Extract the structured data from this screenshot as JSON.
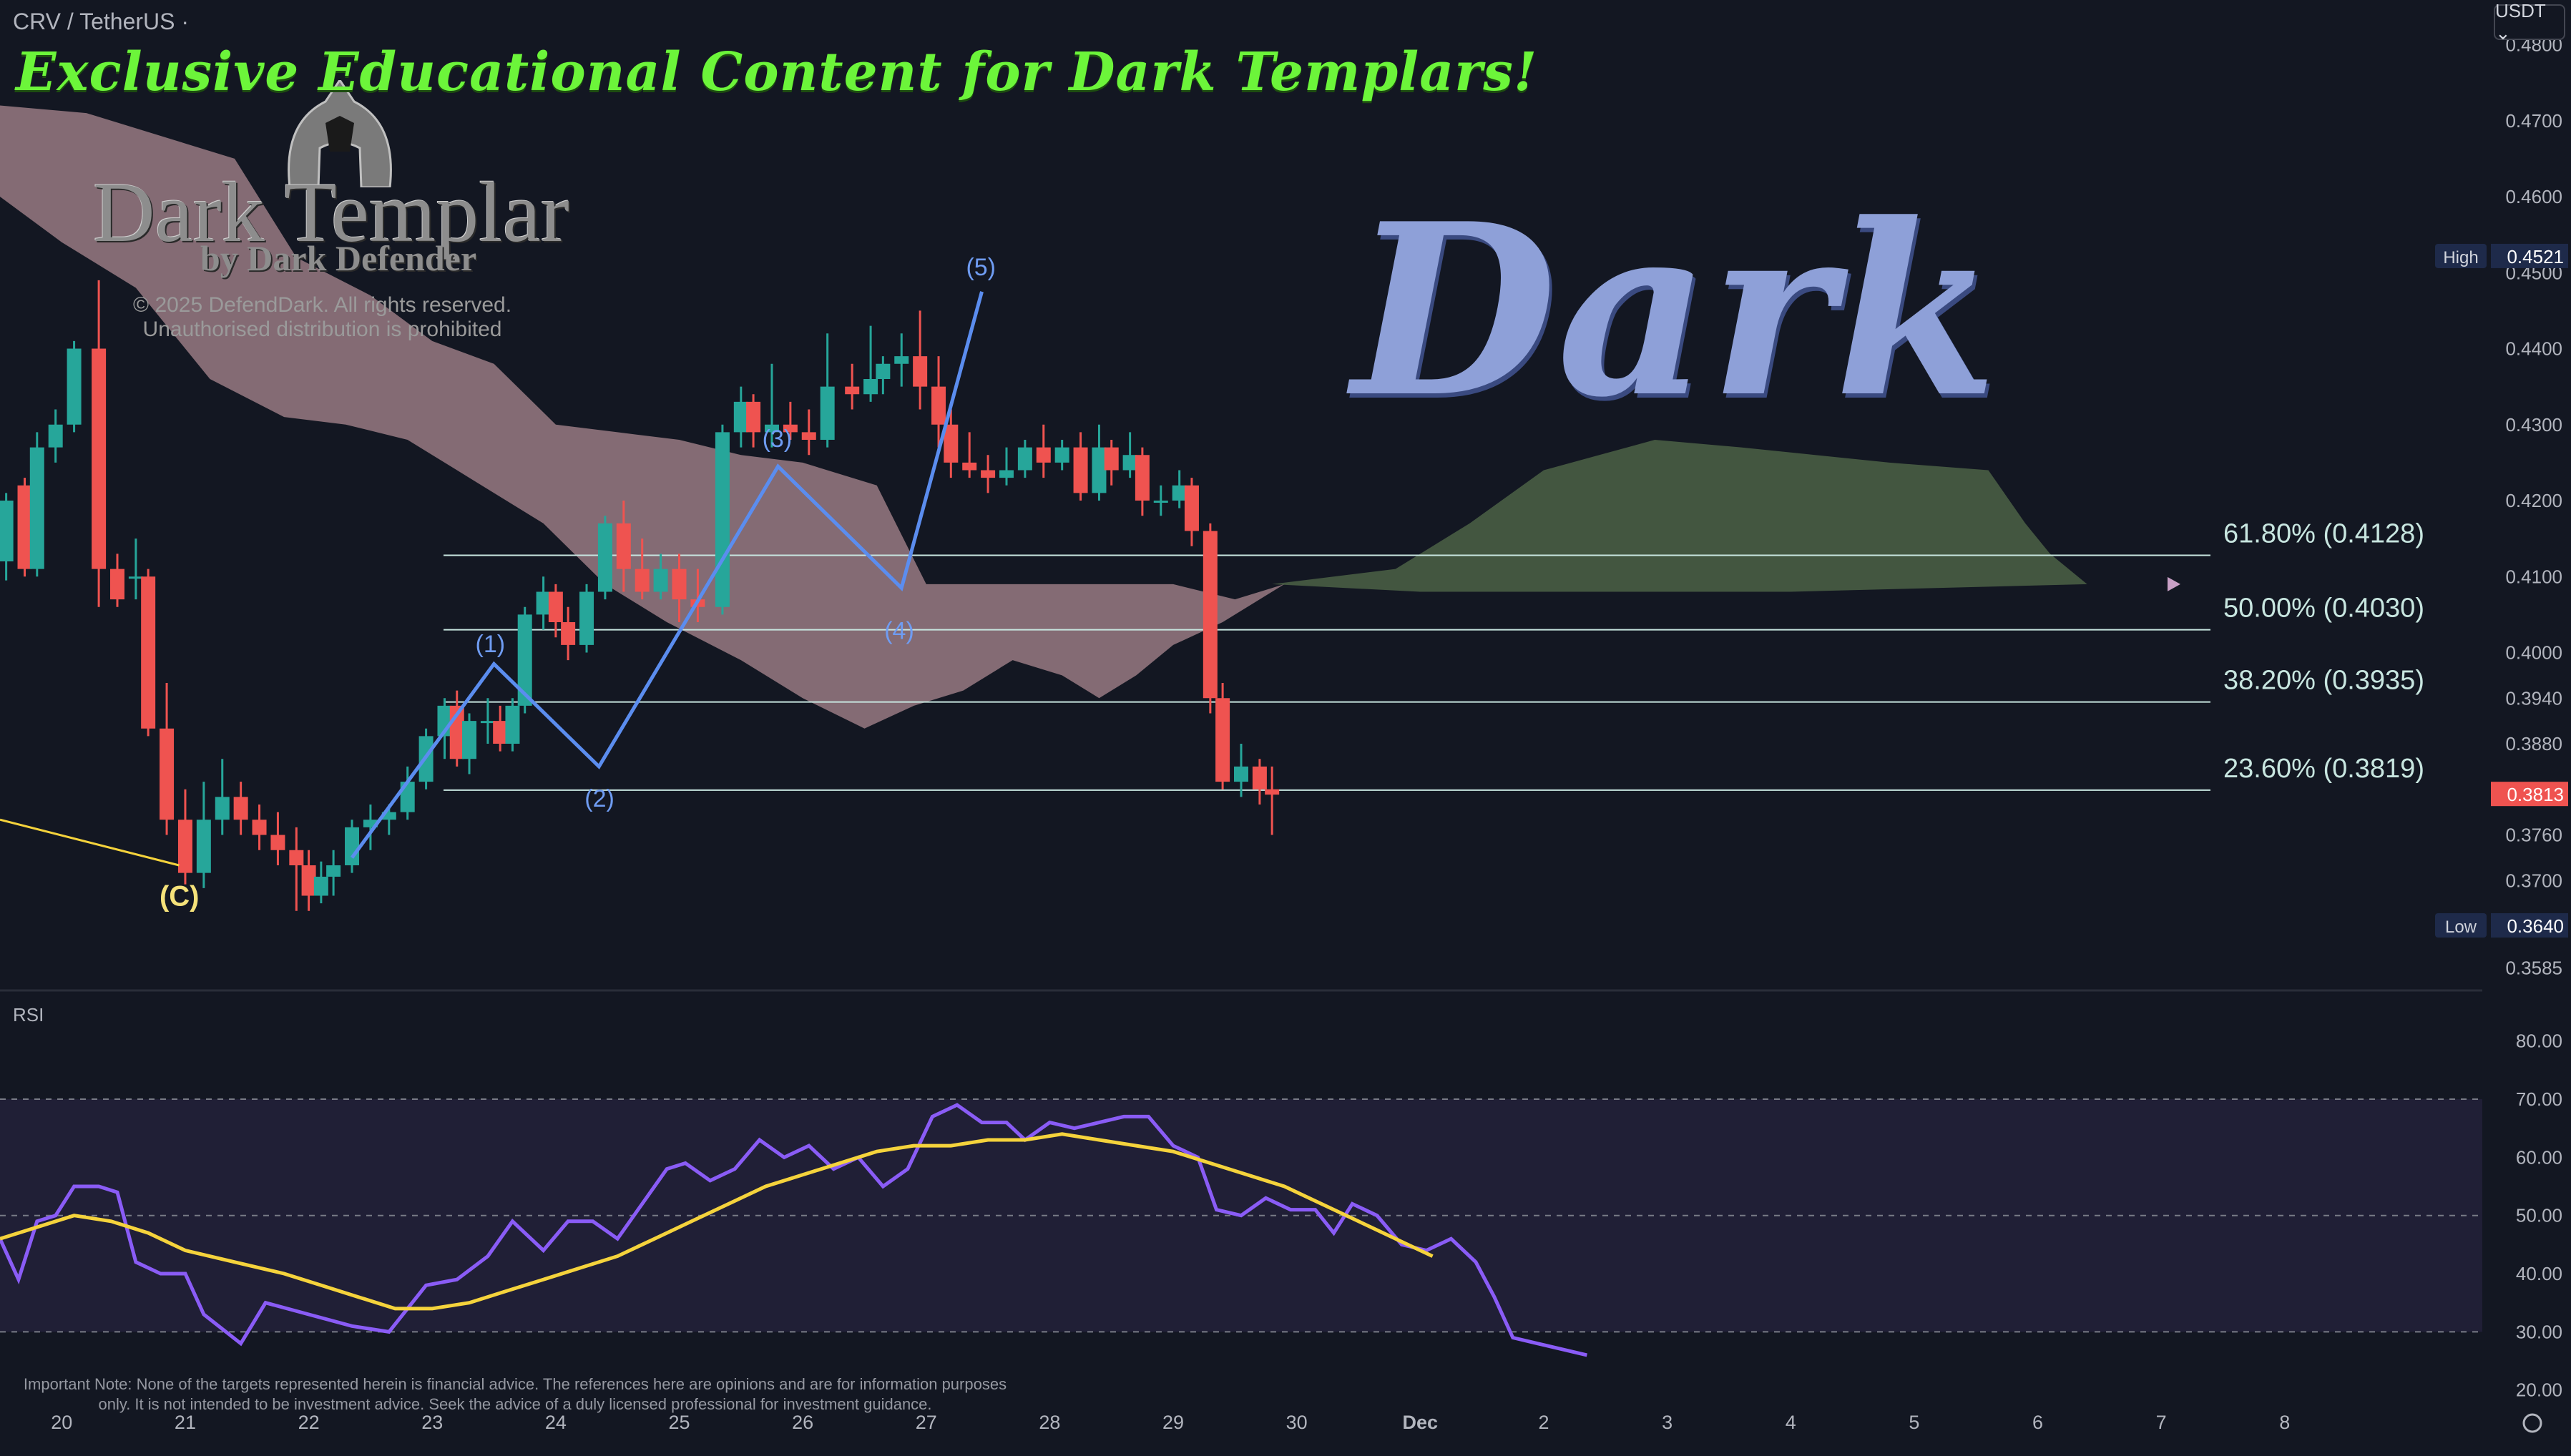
{
  "header": {
    "symbol": "CRV / TetherUS ·",
    "currency": "USDT ⌄"
  },
  "branding": {
    "promo": "Exclusive Educational Content for Dark Templars!",
    "logo": "Dark Templar",
    "logo_sub": "by Dark Defender",
    "copyright": "© 2025 DefendDark. All rights reserved.",
    "distribution": "Unauthorised distribution is prohibited",
    "watermark": "Dark"
  },
  "colors": {
    "bg": "#131722",
    "up": "#26a69a",
    "down": "#ef5350",
    "wave": "#5b8def",
    "rsi": "#8a5cf6",
    "rsi_ma": "#f5d33c",
    "fib": "#c8e6e0",
    "cloud_bear": "#c9a0a6",
    "cloud_bull": "#6b8a5a"
  },
  "chart_data": {
    "type": "candlestick",
    "price_axis": {
      "ticks": [
        "0.4800",
        "0.4700",
        "0.4600",
        "0.4500",
        "0.4400",
        "0.4300",
        "0.4200",
        "0.4100",
        "0.4000",
        "0.3940",
        "0.3880",
        "0.3760",
        "0.3700",
        "0.3585"
      ],
      "ylim": [
        0.356,
        0.484
      ],
      "high": {
        "label": "High",
        "value": "0.4521"
      },
      "last": {
        "value": "0.3813"
      },
      "low": {
        "label": "Low",
        "value": "0.3640"
      }
    },
    "x_axis": {
      "labels": [
        "20",
        "21",
        "22",
        "23",
        "24",
        "25",
        "26",
        "27",
        "28",
        "29",
        "30",
        "Dec",
        "2",
        "3",
        "4",
        "5",
        "6",
        "7",
        "8"
      ],
      "xlim": [
        19.5,
        39.6
      ]
    },
    "candles": [
      [
        19.55,
        0.412,
        0.42,
        0.4095,
        0.421
      ],
      [
        19.7,
        0.422,
        0.411,
        0.41,
        0.423
      ],
      [
        19.8,
        0.411,
        0.427,
        0.41,
        0.429
      ],
      [
        19.95,
        0.427,
        0.43,
        0.425,
        0.432
      ],
      [
        20.1,
        0.43,
        0.44,
        0.429,
        0.441
      ],
      [
        20.3,
        0.44,
        0.411,
        0.406,
        0.449
      ],
      [
        20.45,
        0.411,
        0.407,
        0.406,
        0.413
      ],
      [
        20.6,
        0.41,
        0.41,
        0.407,
        0.415
      ],
      [
        20.7,
        0.41,
        0.39,
        0.389,
        0.411
      ],
      [
        20.85,
        0.39,
        0.378,
        0.376,
        0.396
      ],
      [
        21.0,
        0.378,
        0.371,
        0.3695,
        0.382
      ],
      [
        21.15,
        0.371,
        0.378,
        0.369,
        0.383
      ],
      [
        21.3,
        0.378,
        0.381,
        0.376,
        0.386
      ],
      [
        21.45,
        0.381,
        0.378,
        0.376,
        0.383
      ],
      [
        21.6,
        0.378,
        0.376,
        0.374,
        0.38
      ],
      [
        21.75,
        0.376,
        0.374,
        0.372,
        0.379
      ],
      [
        21.9,
        0.374,
        0.372,
        0.366,
        0.377
      ],
      [
        22.0,
        0.372,
        0.368,
        0.366,
        0.374
      ],
      [
        22.1,
        0.368,
        0.3705,
        0.367,
        0.3725
      ],
      [
        22.2,
        0.3705,
        0.372,
        0.368,
        0.374
      ],
      [
        22.35,
        0.372,
        0.377,
        0.371,
        0.378
      ],
      [
        22.5,
        0.377,
        0.378,
        0.374,
        0.38
      ],
      [
        22.65,
        0.378,
        0.379,
        0.376,
        0.38
      ],
      [
        22.8,
        0.379,
        0.383,
        0.378,
        0.385
      ],
      [
        22.95,
        0.383,
        0.389,
        0.382,
        0.39
      ],
      [
        23.1,
        0.389,
        0.393,
        0.386,
        0.394
      ],
      [
        23.2,
        0.393,
        0.386,
        0.385,
        0.395
      ],
      [
        23.3,
        0.386,
        0.391,
        0.384,
        0.392
      ],
      [
        23.45,
        0.391,
        0.391,
        0.388,
        0.394
      ],
      [
        23.55,
        0.391,
        0.388,
        0.387,
        0.393
      ],
      [
        23.65,
        0.388,
        0.393,
        0.387,
        0.394
      ],
      [
        23.75,
        0.393,
        0.405,
        0.392,
        0.406
      ],
      [
        23.9,
        0.405,
        0.408,
        0.403,
        0.41
      ],
      [
        24.0,
        0.408,
        0.404,
        0.402,
        0.409
      ],
      [
        24.1,
        0.404,
        0.401,
        0.399,
        0.406
      ],
      [
        24.25,
        0.401,
        0.408,
        0.4,
        0.409
      ],
      [
        24.4,
        0.408,
        0.417,
        0.407,
        0.418
      ],
      [
        24.55,
        0.417,
        0.411,
        0.408,
        0.42
      ],
      [
        24.7,
        0.411,
        0.408,
        0.407,
        0.415
      ],
      [
        24.85,
        0.408,
        0.411,
        0.407,
        0.413
      ],
      [
        25.0,
        0.411,
        0.407,
        0.404,
        0.413
      ],
      [
        25.15,
        0.407,
        0.406,
        0.404,
        0.411
      ],
      [
        25.35,
        0.406,
        0.429,
        0.405,
        0.43
      ],
      [
        25.5,
        0.429,
        0.433,
        0.427,
        0.435
      ],
      [
        25.6,
        0.433,
        0.429,
        0.427,
        0.434
      ],
      [
        25.75,
        0.429,
        0.43,
        0.427,
        0.438
      ],
      [
        25.9,
        0.43,
        0.429,
        0.428,
        0.433
      ],
      [
        26.05,
        0.429,
        0.428,
        0.426,
        0.432
      ],
      [
        26.2,
        0.428,
        0.435,
        0.427,
        0.442
      ],
      [
        26.4,
        0.435,
        0.434,
        0.432,
        0.438
      ],
      [
        26.55,
        0.434,
        0.436,
        0.433,
        0.443
      ],
      [
        26.65,
        0.436,
        0.438,
        0.434,
        0.439
      ],
      [
        26.8,
        0.438,
        0.439,
        0.435,
        0.442
      ],
      [
        26.95,
        0.439,
        0.435,
        0.432,
        0.445
      ],
      [
        27.1,
        0.435,
        0.43,
        0.427,
        0.439
      ],
      [
        27.2,
        0.43,
        0.425,
        0.423,
        0.432
      ],
      [
        27.35,
        0.425,
        0.424,
        0.423,
        0.429
      ],
      [
        27.5,
        0.424,
        0.423,
        0.421,
        0.426
      ],
      [
        27.65,
        0.423,
        0.424,
        0.422,
        0.427
      ],
      [
        27.8,
        0.424,
        0.427,
        0.423,
        0.428
      ],
      [
        27.95,
        0.427,
        0.425,
        0.423,
        0.43
      ],
      [
        28.1,
        0.425,
        0.427,
        0.424,
        0.428
      ],
      [
        28.25,
        0.427,
        0.421,
        0.42,
        0.429
      ],
      [
        28.4,
        0.421,
        0.427,
        0.42,
        0.43
      ],
      [
        28.5,
        0.427,
        0.424,
        0.422,
        0.428
      ],
      [
        28.65,
        0.424,
        0.426,
        0.423,
        0.429
      ],
      [
        28.75,
        0.426,
        0.42,
        0.418,
        0.427
      ],
      [
        28.9,
        0.42,
        0.42,
        0.418,
        0.422
      ],
      [
        29.05,
        0.42,
        0.422,
        0.419,
        0.424
      ],
      [
        29.15,
        0.422,
        0.416,
        0.414,
        0.423
      ],
      [
        29.3,
        0.416,
        0.394,
        0.392,
        0.417
      ],
      [
        29.4,
        0.394,
        0.383,
        0.382,
        0.396
      ],
      [
        29.55,
        0.383,
        0.385,
        0.381,
        0.388
      ],
      [
        29.7,
        0.385,
        0.382,
        0.38,
        0.386
      ],
      [
        29.8,
        0.382,
        0.3813,
        0.376,
        0.385
      ]
    ],
    "waves": [
      {
        "label": "(1)",
        "x": 23.5,
        "y": 0.398
      },
      {
        "label": "(2)",
        "x": 24.35,
        "y": 0.385
      },
      {
        "label": "(3)",
        "x": 25.8,
        "y": 0.425
      },
      {
        "label": "(4)",
        "x": 26.8,
        "y": 0.408
      },
      {
        "label": "(5)",
        "x": 27.45,
        "y": 0.447
      }
    ],
    "wave_path": [
      [
        22.35,
        0.373
      ],
      [
        23.5,
        0.3985
      ],
      [
        24.35,
        0.385
      ],
      [
        25.8,
        0.4245
      ],
      [
        26.8,
        0.4085
      ],
      [
        27.45,
        0.4475
      ]
    ],
    "wave_c": {
      "label": "(C)",
      "x": 21.0,
      "y": 0.368,
      "line": [
        [
          19.5,
          0.378
        ],
        [
          20.95,
          0.372
        ]
      ]
    },
    "fibs": [
      {
        "label": "61.80% (0.4128)",
        "value": 0.4128
      },
      {
        "label": "50.00% (0.4030)",
        "value": 0.403
      },
      {
        "label": "38.20% (0.3935)",
        "value": 0.3935
      },
      {
        "label": "23.60% (0.3819)",
        "value": 0.3819
      }
    ],
    "rsi": {
      "label": "RSI",
      "ticks": [
        "80.00",
        "70.00",
        "60.00",
        "50.00",
        "40.00",
        "30.00",
        "20.00"
      ],
      "ylim": [
        18,
        85
      ],
      "upper": 70,
      "mid": 50,
      "lower": 30,
      "rsi": [
        [
          19.5,
          46
        ],
        [
          19.65,
          39
        ],
        [
          19.8,
          49
        ],
        [
          19.95,
          50
        ],
        [
          20.1,
          55
        ],
        [
          20.3,
          55
        ],
        [
          20.45,
          54
        ],
        [
          20.6,
          42
        ],
        [
          20.8,
          40
        ],
        [
          21.0,
          40
        ],
        [
          21.15,
          33
        ],
        [
          21.45,
          28
        ],
        [
          21.65,
          35
        ],
        [
          22.0,
          33
        ],
        [
          22.35,
          31
        ],
        [
          22.65,
          30
        ],
        [
          22.95,
          38
        ],
        [
          23.2,
          39
        ],
        [
          23.45,
          43
        ],
        [
          23.65,
          49
        ],
        [
          23.9,
          44
        ],
        [
          24.1,
          49
        ],
        [
          24.3,
          49
        ],
        [
          24.5,
          46
        ],
        [
          24.7,
          52
        ],
        [
          24.9,
          58
        ],
        [
          25.05,
          59
        ],
        [
          25.25,
          56
        ],
        [
          25.45,
          58
        ],
        [
          25.65,
          63
        ],
        [
          25.85,
          60
        ],
        [
          26.05,
          62
        ],
        [
          26.25,
          58
        ],
        [
          26.45,
          60
        ],
        [
          26.65,
          55
        ],
        [
          26.85,
          58
        ],
        [
          27.05,
          67
        ],
        [
          27.25,
          69
        ],
        [
          27.45,
          66
        ],
        [
          27.65,
          66
        ],
        [
          27.8,
          63
        ],
        [
          28.0,
          66
        ],
        [
          28.2,
          65
        ],
        [
          28.4,
          66
        ],
        [
          28.6,
          67
        ],
        [
          28.8,
          67
        ],
        [
          29.0,
          62
        ],
        [
          29.2,
          60
        ],
        [
          29.35,
          51
        ],
        [
          29.55,
          50
        ],
        [
          29.75,
          53
        ],
        [
          29.95,
          51
        ],
        [
          30.15,
          51
        ],
        [
          30.3,
          47
        ],
        [
          30.45,
          52
        ],
        [
          30.65,
          50
        ],
        [
          30.85,
          45
        ],
        [
          31.05,
          44
        ],
        [
          31.25,
          46
        ],
        [
          31.45,
          42
        ],
        [
          31.6,
          36
        ],
        [
          31.75,
          29
        ],
        [
          31.95,
          28
        ],
        [
          32.15,
          27
        ],
        [
          32.35,
          26
        ]
      ],
      "ma": [
        [
          19.5,
          46
        ],
        [
          19.8,
          48
        ],
        [
          20.1,
          50
        ],
        [
          20.4,
          49
        ],
        [
          20.7,
          47
        ],
        [
          21.0,
          44
        ],
        [
          21.4,
          42
        ],
        [
          21.8,
          40
        ],
        [
          22.1,
          38
        ],
        [
          22.4,
          36
        ],
        [
          22.7,
          34
        ],
        [
          23.0,
          34
        ],
        [
          23.3,
          35
        ],
        [
          23.6,
          37
        ],
        [
          23.9,
          39
        ],
        [
          24.2,
          41
        ],
        [
          24.5,
          43
        ],
        [
          24.8,
          46
        ],
        [
          25.1,
          49
        ],
        [
          25.4,
          52
        ],
        [
          25.7,
          55
        ],
        [
          26.0,
          57
        ],
        [
          26.3,
          59
        ],
        [
          26.6,
          61
        ],
        [
          26.9,
          62
        ],
        [
          27.2,
          62
        ],
        [
          27.5,
          63
        ],
        [
          27.8,
          63
        ],
        [
          28.1,
          64
        ],
        [
          28.4,
          63
        ],
        [
          28.7,
          62
        ],
        [
          29.0,
          61
        ],
        [
          29.3,
          59
        ],
        [
          29.6,
          57
        ],
        [
          29.9,
          55
        ],
        [
          30.2,
          52
        ],
        [
          30.5,
          49
        ],
        [
          30.8,
          46
        ],
        [
          31.1,
          43
        ]
      ]
    }
  },
  "note": "Important Note: None of the targets represented herein is financial advice. The references here are opinions and are for information purposes only. It is not intended to be investment advice. Seek the advice of a duly licensed professional for investment guidance."
}
